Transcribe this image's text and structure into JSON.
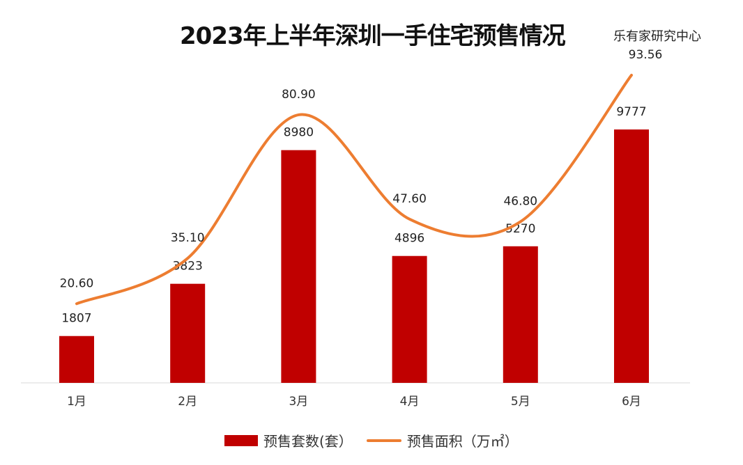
{
  "title": "2023年上半年深圳一手住宅预售情况",
  "source": "乐有家研究中心",
  "chart_data": {
    "type": "bar+line",
    "title": "2023年上半年深圳一手住宅预售情况",
    "categories": [
      "1月",
      "2月",
      "3月",
      "4月",
      "5月",
      "6月"
    ],
    "series": [
      {
        "name": "预售套数(套）",
        "type": "bar",
        "color": "#c00000",
        "values": [
          1807,
          3823,
          8980,
          4896,
          5270,
          9777
        ],
        "labels": [
          "1807",
          "3823",
          "8980",
          "4896",
          "5270",
          "9777"
        ]
      },
      {
        "name": "预售面积（万㎡）",
        "type": "line",
        "smooth": true,
        "color": "#ed7d31",
        "values": [
          20.6,
          35.1,
          80.9,
          47.6,
          46.8,
          93.56
        ],
        "labels": [
          "20.60",
          "35.10",
          "80.90",
          "47.60",
          "46.80",
          "93.56"
        ]
      }
    ],
    "grid": false,
    "legend": "bottom"
  }
}
